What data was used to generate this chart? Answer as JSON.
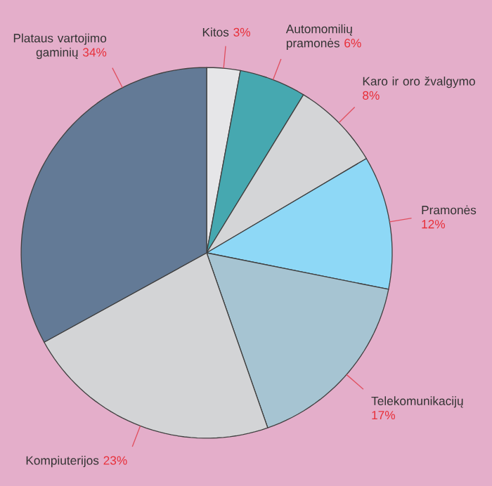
{
  "chart_data": {
    "type": "pie",
    "categories": [
      "Kitos",
      "Automomilių pramonės",
      "Karo ir oro žvalgymo",
      "Pramonės",
      "Telekomunikacijų",
      "Kompiuterijos",
      "Plataus vartojimo gaminių"
    ],
    "values": [
      3,
      6,
      8,
      12,
      17,
      23,
      34
    ],
    "value_labels": [
      "3%",
      "6%",
      "8%",
      "12%",
      "17%",
      "23%",
      "34%"
    ],
    "colors": [
      "#e6e6e8",
      "#46a8b0",
      "#d4d5d7",
      "#8ed8f6",
      "#a6c4d2",
      "#d3d4d6",
      "#637a96"
    ]
  }
}
